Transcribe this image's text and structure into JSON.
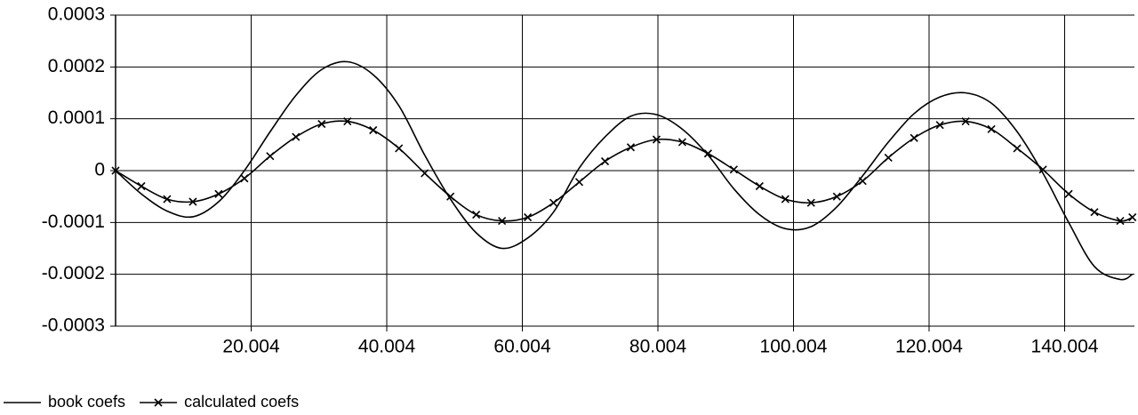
{
  "chart_data": {
    "type": "line",
    "x": [
      0,
      3.8,
      7.6,
      11.4,
      15.2,
      19,
      22.8,
      26.6,
      30.4,
      34.2,
      38,
      41.8,
      45.6,
      49.4,
      53.2,
      57,
      60.8,
      64.6,
      68.4,
      72.2,
      76,
      79.8,
      83.6,
      87.4,
      91.2,
      95,
      98.8,
      102.6,
      106.4,
      110.2,
      114,
      117.8,
      121.6,
      125.4,
      129.2,
      133,
      136.8,
      140.6,
      144.4,
      148.2,
      150
    ],
    "series": [
      {
        "name": "book coefs",
        "color": "#000000",
        "marker": "none",
        "values": [
          0,
          -4.5e-05,
          -7.8e-05,
          -8.9e-05,
          -6e-05,
          0,
          7.5e-05,
          0.000145,
          0.000195,
          0.00021,
          0.000185,
          0.000125,
          3e-05,
          -5.5e-05,
          -0.00012,
          -0.00015,
          -0.00013,
          -8e-05,
          5e-06,
          6.5e-05,
          0.000105,
          0.000108,
          8e-05,
          3e-05,
          -3.5e-05,
          -8.5e-05,
          -0.000112,
          -0.000108,
          -7e-05,
          -1e-05,
          5.5e-05,
          0.00011,
          0.000142,
          0.00015,
          0.00013,
          7.5e-05,
          -5e-06,
          -0.0001,
          -0.000185,
          -0.00021,
          -0.0002
        ]
      },
      {
        "name": "calculated coefs",
        "color": "#000000",
        "marker": "x",
        "values": [
          0,
          -3e-05,
          -5.5e-05,
          -6e-05,
          -4.5e-05,
          -1.5e-05,
          2.8e-05,
          6.5e-05,
          9e-05,
          9.5e-05,
          7.8e-05,
          4.3e-05,
          -5e-06,
          -5e-05,
          -8.5e-05,
          -9.7e-05,
          -9e-05,
          -6.2e-05,
          -2.2e-05,
          1.8e-05,
          4.5e-05,
          6e-05,
          5.5e-05,
          3.3e-05,
          2e-06,
          -3e-05,
          -5.5e-05,
          -6.2e-05,
          -5e-05,
          -2e-05,
          2.5e-05,
          6.3e-05,
          8.8e-05,
          9.5e-05,
          8e-05,
          4.3e-05,
          2e-06,
          -4.5e-05,
          -8e-05,
          -9.7e-05,
          -9e-05
        ]
      }
    ],
    "xlim": [
      0,
      150.3
    ],
    "xticks": [
      20.004,
      40.004,
      60.004,
      80.004,
      100.004,
      120.004,
      140.004
    ],
    "ylim": [
      -0.0003,
      0.0003
    ],
    "yticks": [
      -0.0003,
      -0.0002,
      -0.0001,
      0,
      0.0001,
      0.0002,
      0.0003
    ],
    "grid": true,
    "legend": "bottom-left"
  }
}
